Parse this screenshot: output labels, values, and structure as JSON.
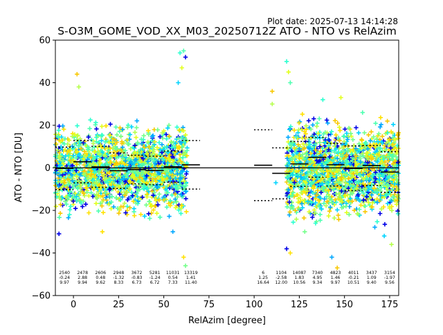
{
  "plot_date": "Plot date: 2025-07-13 14:14:28",
  "chart_data": {
    "type": "scatter",
    "title": "S-O3M_GOME_VOD_XX_M03_20250712Z ATO - NTO vs RelAzim",
    "xlabel": "RelAzim [degree]",
    "ylabel": "ATO - NTO [DU]",
    "xlim": [
      -10,
      180
    ],
    "ylim": [
      -60,
      60
    ],
    "xticks": [
      0,
      25,
      50,
      75,
      100,
      125,
      150,
      175
    ],
    "yticks": [
      -60,
      -40,
      -20,
      0,
      20,
      40,
      60
    ],
    "grid": false,
    "zero_line": 0,
    "colors": [
      "#f8c800",
      "#ffe100",
      "#e2ff1c",
      "#b6ff4d",
      "#74ff8a",
      "#4dffb0",
      "#00d4ff",
      "#00a8ff",
      "#0000e6",
      "#2cffd0"
    ],
    "scatter_segments": [
      {
        "x": [
          -10,
          63
        ],
        "y": [
          -27,
          25
        ],
        "density": 1800
      },
      {
        "x": [
          118,
          180
        ],
        "y": [
          -30,
          27
        ],
        "density": 1700
      }
    ],
    "scatter_outliers": [
      {
        "x": 2,
        "y": 44
      },
      {
        "x": 3,
        "y": 38
      },
      {
        "x": 58,
        "y": 40
      },
      {
        "x": 59,
        "y": 54
      },
      {
        "x": 60,
        "y": 47
      },
      {
        "x": 61,
        "y": 55
      },
      {
        "x": 62,
        "y": 52
      },
      {
        "x": 61,
        "y": -42
      },
      {
        "x": 62,
        "y": -46
      },
      {
        "x": 55,
        "y": -30
      },
      {
        "x": 110,
        "y": 36
      },
      {
        "x": 110,
        "y": 30
      },
      {
        "x": 112,
        "y": -7
      },
      {
        "x": 118,
        "y": 50
      },
      {
        "x": 119,
        "y": 45
      },
      {
        "x": 120,
        "y": 40
      },
      {
        "x": 118,
        "y": -38
      },
      {
        "x": 120,
        "y": -40
      },
      {
        "x": 128,
        "y": -30
      },
      {
        "x": 143,
        "y": -42
      },
      {
        "x": 146,
        "y": -47
      },
      {
        "x": 176,
        "y": -36
      },
      {
        "x": 172,
        "y": -32
      },
      {
        "x": 138,
        "y": 32
      },
      {
        "x": 148,
        "y": 33
      },
      {
        "x": 160,
        "y": 26
      },
      {
        "x": -8,
        "y": -31
      },
      {
        "x": 16,
        "y": -30
      },
      {
        "x": 30,
        "y": 19
      }
    ],
    "bins": [
      {
        "x": 0,
        "count": "2540",
        "mean": "-0.24",
        "std": "9.97"
      },
      {
        "x": 10,
        "count": "2478",
        "mean": "2.88",
        "std": "9.94"
      },
      {
        "x": 20,
        "count": "2606",
        "mean": "0.48",
        "std": "9.62"
      },
      {
        "x": 30,
        "count": "2948",
        "mean": "-1.32",
        "std": "8.33"
      },
      {
        "x": 40,
        "count": "3672",
        "mean": "-0.83",
        "std": "6.73"
      },
      {
        "x": 50,
        "count": "5281",
        "mean": "-1.24",
        "std": "6.72"
      },
      {
        "x": 60,
        "count": "11031",
        "mean": "0.54",
        "std": "7.33"
      },
      {
        "x": 70,
        "count": "13319",
        "mean": "1.41",
        "std": "11.40"
      },
      {
        "x": 110,
        "count": "6",
        "mean": "1.25",
        "std": "16.64"
      },
      {
        "x": 120,
        "count": "1104",
        "mean": "-2.58",
        "std": "12.00"
      },
      {
        "x": 130,
        "count": "14087",
        "mean": "1.83",
        "std": "10.56"
      },
      {
        "x": 140,
        "count": "7340",
        "mean": "4.95",
        "std": "9.34"
      },
      {
        "x": 150,
        "count": "4823",
        "mean": "1.46",
        "std": "9.97"
      },
      {
        "x": 160,
        "count": "4011",
        "mean": "-0.21",
        "std": "10.51"
      },
      {
        "x": 170,
        "count": "3437",
        "mean": "1.09",
        "std": "9.40"
      },
      {
        "x": 180,
        "count": "3154",
        "mean": "-1.97",
        "std": "9.56"
      }
    ]
  }
}
